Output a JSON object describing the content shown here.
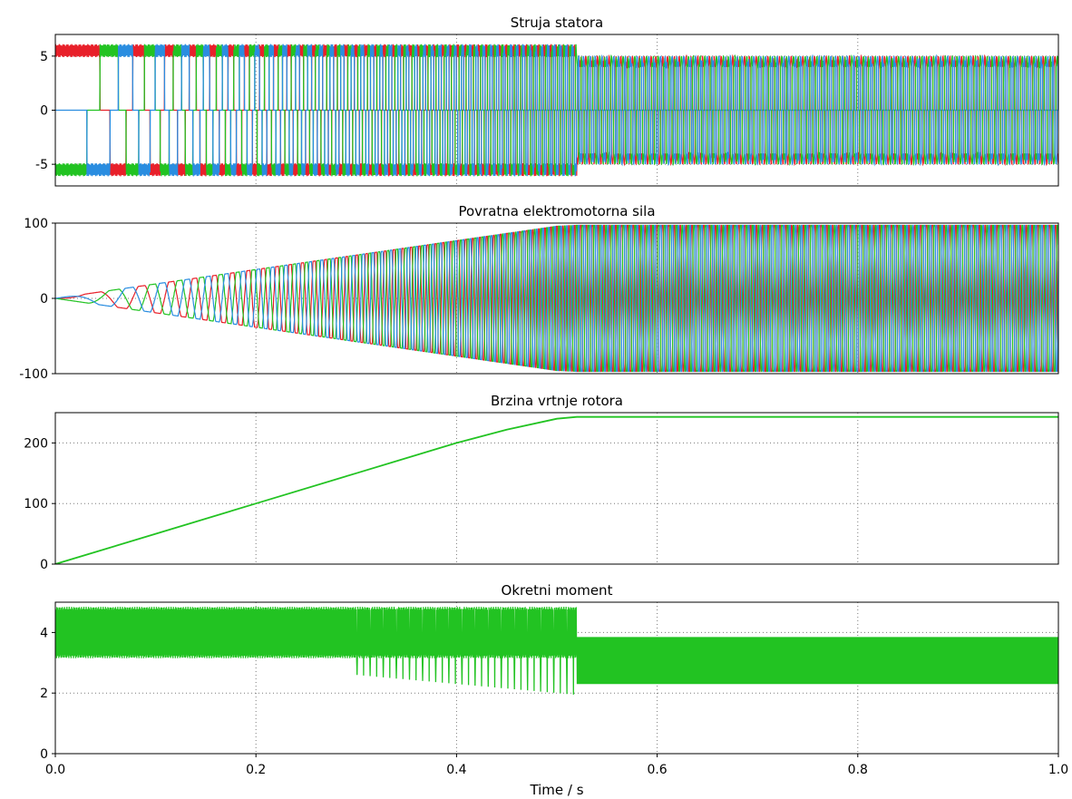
{
  "figure": {
    "xlabel": "Time / s",
    "xlim": [
      0,
      1.0
    ],
    "xticks": [
      "0.0",
      "0.2",
      "0.4",
      "0.6",
      "0.8",
      "1.0"
    ],
    "grid": true
  },
  "chart_data": [
    {
      "type": "line",
      "title": "Struja statora",
      "ylim": [
        -7,
        7
      ],
      "yticks": [
        "5",
        "0",
        "-5"
      ],
      "ytick_values": [
        5,
        0,
        -5
      ],
      "description_values": {
        "startup_current_amplitude": 5.5,
        "steady_state_current_amplitude": 4.5,
        "acceleration_end_time": 0.52
      },
      "series": [
        {
          "color": "#e8202a"
        },
        {
          "color": "#22c322"
        },
        {
          "color": "#2a8de0"
        }
      ]
    },
    {
      "type": "line",
      "title": "Povratna elektromotorna sila",
      "ylim": [
        -100,
        100
      ],
      "yticks": [
        "100",
        "0",
        "-100"
      ],
      "ytick_values": [
        100,
        0,
        -100
      ],
      "description_values": {
        "emf_ramp_start": 0,
        "emf_max_amplitude": 97,
        "ramp_end_time": 0.52
      },
      "series": [
        {
          "color": "#e8202a"
        },
        {
          "color": "#22c322"
        },
        {
          "color": "#2a8de0"
        }
      ]
    },
    {
      "type": "line",
      "title": "Brzina vrtnje rotora",
      "ylim": [
        0,
        250
      ],
      "yticks": [
        "200",
        "100",
        "0"
      ],
      "ytick_values": [
        200,
        100,
        0
      ],
      "series": [
        {
          "color": "#22c322",
          "x": [
            0,
            0.1,
            0.2,
            0.3,
            0.4,
            0.45,
            0.5,
            0.52,
            0.6,
            0.8,
            1.0
          ],
          "y": [
            0,
            50,
            100,
            150,
            200,
            222,
            240,
            243,
            243,
            243,
            243
          ]
        }
      ]
    },
    {
      "type": "line",
      "title": "Okretni moment",
      "ylim": [
        0,
        5
      ],
      "yticks": [
        "4",
        "2",
        "0"
      ],
      "ytick_values": [
        4,
        2,
        0
      ],
      "description_values": {
        "startup_torque_max": 4.8,
        "startup_torque_min": 3.2,
        "steady_torque_max": 3.85,
        "steady_torque_min": 2.3,
        "transition_time": 0.52
      },
      "series": [
        {
          "color": "#22c322"
        }
      ]
    }
  ]
}
